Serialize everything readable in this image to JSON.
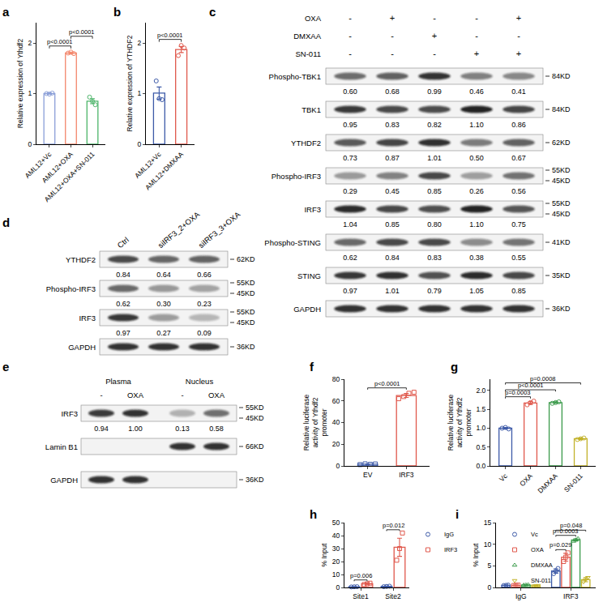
{
  "chart_data": [
    {
      "panel": "a",
      "type": "bar",
      "ylabel": "Relative expression of Ythdf2",
      "categories": [
        "AML12+Vc",
        "AML12+OXA",
        "AML12+OXA+SN-011"
      ],
      "values": [
        1.0,
        1.8,
        0.85
      ],
      "errors": [
        0.01,
        0.02,
        0.05
      ],
      "points": [
        [
          1.0,
          0.99,
          1.01
        ],
        [
          1.8,
          1.82,
          1.79
        ],
        [
          0.93,
          0.85,
          0.78
        ]
      ],
      "colors": [
        "#8b9fd8",
        "#f3876c",
        "#4db56a"
      ],
      "marker": "circle",
      "ylim": [
        0,
        2.4
      ],
      "yticks": [
        0,
        1,
        2
      ],
      "grid": false,
      "comparisons": [
        {
          "from": "AML12+Vc",
          "to": "AML12+OXA",
          "label": "p<0.0001"
        },
        {
          "from": "AML12+OXA",
          "to": "AML12+OXA+SN-011",
          "label": "p<0.0001"
        }
      ]
    },
    {
      "panel": "b",
      "type": "bar",
      "ylabel": "Relative expression of YTHDF2",
      "categories": [
        "AML12+Vc",
        "AML12+DMXAA"
      ],
      "values": [
        1.01,
        1.87
      ],
      "errors": [
        0.12,
        0.06
      ],
      "points": [
        [
          1.25,
          0.9,
          0.88
        ],
        [
          1.75,
          1.95,
          1.9
        ]
      ],
      "colors": [
        "#3d5aa8",
        "#e0584c"
      ],
      "marker": "circle",
      "ylim": [
        0,
        2.4
      ],
      "yticks": [
        0,
        1,
        2
      ],
      "grid": false,
      "comparisons": [
        {
          "from": "AML12+Vc",
          "to": "AML12+DMXAA",
          "label": "p<0.0001"
        }
      ]
    },
    {
      "panel": "f",
      "type": "bar",
      "ylabel": "Relative luciferase activity of Ythdf2 promoter",
      "categories": [
        "EV",
        "IRF3"
      ],
      "values": [
        1.6,
        65
      ],
      "errors": [
        0.3,
        1.8
      ],
      "points": [
        [
          1.2,
          1.9,
          1.5,
          1.8
        ],
        [
          62,
          64,
          67,
          68
        ]
      ],
      "colors": [
        "#3d5aa8",
        "#e0584c"
      ],
      "marker": "square",
      "ylim": [
        0,
        80
      ],
      "yticks": [
        0,
        20,
        40,
        60,
        80
      ],
      "grid": false,
      "comparisons": [
        {
          "from": "EV",
          "to": "IRF3",
          "label": "p<0.0001"
        }
      ]
    },
    {
      "panel": "g",
      "type": "bar",
      "ylabel": "Relative luciferase activity of Ythdf2 promoter",
      "categories": [
        "Vc",
        "OXA",
        "DMXAA",
        "SN-011"
      ],
      "values": [
        1.0,
        1.67,
        1.68,
        0.72
      ],
      "errors": [
        0.02,
        0.04,
        0.02,
        0.02
      ],
      "points": [
        [
          1.0,
          1.02,
          0.98
        ],
        [
          1.62,
          1.68,
          1.72
        ],
        [
          1.66,
          1.68,
          1.7
        ],
        [
          0.7,
          0.72,
          0.74
        ]
      ],
      "colors": [
        "#3d5aa8",
        "#e0584c",
        "#3a9a4a",
        "#c2b22a"
      ],
      "marker": "circle",
      "ylim": [
        0,
        2.3
      ],
      "yticks": [
        {
          "value": 0,
          "label": "0.0"
        },
        {
          "value": 0.5,
          "label": "0.5"
        },
        {
          "value": 1,
          "label": "1.0"
        },
        {
          "value": 1.5,
          "label": "1.5"
        },
        {
          "value": 2,
          "label": "2.0"
        }
      ],
      "grid": false,
      "comparisons": [
        {
          "from": "Vc",
          "to": "OXA",
          "label": "p=0.0003"
        },
        {
          "from": "Vc",
          "to": "DMXAA",
          "label": "p<0.0001"
        },
        {
          "from": "Vc",
          "to": "SN-011",
          "label": "p=0.0008"
        }
      ]
    },
    {
      "panel": "h",
      "type": "bar",
      "ylabel": "% Input",
      "categories": [
        "Site1",
        "Site2"
      ],
      "series": [
        {
          "name": "IgG",
          "color": "#3d5aa8",
          "marker": "circle",
          "values": [
            0.5,
            0.8
          ],
          "errors": [
            0.1,
            0.2
          ],
          "points": [
            [
              0.4,
              0.5,
              0.6
            ],
            [
              0.6,
              0.8,
              1.0
            ]
          ]
        },
        {
          "name": "IRF3",
          "color": "#e0584c",
          "marker": "square",
          "values": [
            2.8,
            31
          ],
          "errors": [
            0.5,
            7
          ],
          "points": [
            [
              2.3,
              2.8,
              3.3
            ],
            [
              21,
              30,
              42
            ]
          ]
        }
      ],
      "ylim": [
        0,
        50
      ],
      "yticks": [
        0,
        10,
        20,
        30,
        40,
        50
      ],
      "grid": false,
      "legend": "right",
      "comparisons": [
        {
          "category": "Site1",
          "from": "IgG",
          "to": "IRF3",
          "label": "p=0.006"
        },
        {
          "category": "Site2",
          "from": "IgG",
          "to": "IRF3",
          "label": "p=0.012"
        }
      ]
    },
    {
      "panel": "i",
      "type": "bar",
      "ylabel": "% Input",
      "categories": [
        "IgG",
        "IRF3"
      ],
      "series": [
        {
          "name": "Vc",
          "color": "#3d5aa8",
          "marker": "circle",
          "values": [
            0.5,
            3.8
          ],
          "errors": [
            0.05,
            0.5
          ],
          "points": [
            [
              0.45,
              0.5,
              0.55
            ],
            [
              3.2,
              3.8,
              4.4
            ]
          ]
        },
        {
          "name": "OXA",
          "color": "#e0584c",
          "marker": "square",
          "values": [
            0.5,
            7.0
          ],
          "errors": [
            0.05,
            0.9
          ],
          "points": [
            [
              0.45,
              0.5,
              0.55
            ],
            [
              6.0,
              7.0,
              8.0
            ]
          ]
        },
        {
          "name": "DMXAA",
          "color": "#3a9a4a",
          "marker": "triangle-up",
          "values": [
            0.6,
            11.0
          ],
          "errors": [
            0.05,
            0.25
          ],
          "points": [
            [
              0.55,
              0.6,
              0.65
            ],
            [
              10.7,
              11.0,
              11.3
            ]
          ]
        },
        {
          "name": "SN-011",
          "color": "#c2b22a",
          "marker": "triangle-down",
          "values": [
            0.4,
            1.8
          ],
          "errors": [
            0.05,
            0.5
          ],
          "points": [
            [
              0.35,
              0.4,
              0.45
            ],
            [
              1.3,
              1.8,
              2.3
            ]
          ]
        }
      ],
      "ylim": [
        0,
        15
      ],
      "yticks": [
        0,
        5,
        10,
        15
      ],
      "grid": false,
      "legend": "upper left",
      "comparisons": [
        {
          "category": "IRF3",
          "from": "Vc",
          "to": "OXA",
          "label": "p=0.029"
        },
        {
          "category": "IRF3",
          "from": "Vc",
          "to": "DMXAA",
          "label": "p=0.0003"
        },
        {
          "category": "IRF3",
          "from": "Vc",
          "to": "SN-011",
          "label": "p=0.048"
        }
      ]
    }
  ],
  "blots": [
    {
      "panel": "c",
      "treatments": [
        {
          "name": "OXA",
          "signs": [
            "-",
            "+",
            "-",
            "-",
            "+"
          ]
        },
        {
          "name": "DMXAA",
          "signs": [
            "-",
            "-",
            "+",
            "-",
            "-"
          ]
        },
        {
          "name": "SN-011",
          "signs": [
            "-",
            "-",
            "-",
            "+",
            "+"
          ]
        }
      ],
      "rows": [
        {
          "label": "Phospho-TBK1",
          "mw": [
            "84KD"
          ],
          "quant": [
            "0.60",
            "0.68",
            "0.99",
            "0.46",
            "0.41"
          ]
        },
        {
          "label": "TBK1",
          "mw": [
            "84KD"
          ],
          "quant": [
            "0.95",
            "0.83",
            "0.82",
            "1.10",
            "0.86"
          ]
        },
        {
          "label": "YTHDF2",
          "mw": [
            "62KD"
          ],
          "quant": [
            "0.73",
            "0.87",
            "1.01",
            "0.50",
            "0.67"
          ]
        },
        {
          "label": "Phospho-IRF3",
          "mw": [
            "55KD",
            "45KD"
          ],
          "quant": [
            "0.29",
            "0.45",
            "0.85",
            "0.26",
            "0.56"
          ]
        },
        {
          "label": "IRF3",
          "mw": [
            "55KD",
            "45KD"
          ],
          "quant": [
            "1.04",
            "0.85",
            "0.80",
            "1.10",
            "0.75"
          ]
        },
        {
          "label": "Phospho-STING",
          "mw": [
            "41KD"
          ],
          "quant": [
            "0.62",
            "0.84",
            "0.83",
            "0.38",
            "0.55"
          ]
        },
        {
          "label": "STING",
          "mw": [
            "35KD"
          ],
          "quant": [
            "0.97",
            "1.01",
            "0.79",
            "1.05",
            "0.85"
          ]
        },
        {
          "label": "GAPDH",
          "mw": [
            "36KD"
          ]
        }
      ]
    },
    {
      "panel": "d",
      "lane_labels": [
        "Ctrl",
        "siIRF3_2+OXA",
        "siIRF3_3+OXA"
      ],
      "rows": [
        {
          "label": "YTHDF2",
          "mw": [
            "62KD"
          ],
          "quant": [
            "0.84",
            "0.64",
            "0.66"
          ]
        },
        {
          "label": "Phospho-IRF3",
          "mw": [
            "55KD",
            "45KD"
          ],
          "quant": [
            "0.62",
            "0.30",
            "0.23"
          ]
        },
        {
          "label": "IRF3",
          "mw": [
            "55KD",
            "45KD"
          ],
          "quant": [
            "0.97",
            "0.27",
            "0.09"
          ]
        },
        {
          "label": "GAPDH",
          "mw": [
            "36KD"
          ]
        }
      ]
    },
    {
      "panel": "e",
      "groups": [
        {
          "name": "Plasma",
          "lanes": [
            "-",
            "OXA"
          ]
        },
        {
          "name": "Nucleus",
          "lanes": [
            "-",
            "OXA"
          ]
        }
      ],
      "rows": [
        {
          "label": "IRF3",
          "mw": [
            "55KD",
            "45KD"
          ],
          "quant": [
            "0.94",
            "1.00",
            "0.13",
            "0.58"
          ]
        },
        {
          "label": "Lamin B1",
          "mw": [
            "66KD"
          ],
          "present": [
            false,
            false,
            true,
            true
          ]
        },
        {
          "label": "GAPDH",
          "mw": [
            "36KD"
          ],
          "present": [
            true,
            true,
            false,
            false
          ]
        }
      ]
    }
  ]
}
